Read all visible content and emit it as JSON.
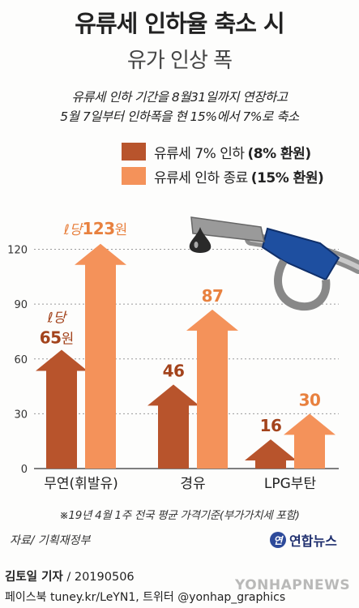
{
  "header": {
    "title": "유류세 인하율 축소 시",
    "subtitle": "유가 인상 폭",
    "note_line1": "유류세 인하 기간을 8월31일까지 연장하고",
    "note_line2": "5월 7일부터 인하폭을 현 15%에서 7%로 축소"
  },
  "legend": [
    {
      "prefix": "유류세 7% 인하",
      "highlight": "(8% 환원)"
    },
    {
      "prefix": "유류세 인하 종료",
      "highlight": "(15% 환원)"
    }
  ],
  "colors": {
    "series1": "#b8542c",
    "series2": "#f4925a",
    "label1": "#a3431c",
    "label2": "#e8813f",
    "nozzle": "#1e4fa0"
  },
  "chart_data": {
    "type": "bar",
    "categories": [
      "무연(휘발유)",
      "경유",
      "LPG부탄"
    ],
    "series": [
      {
        "name": "유류세 7% 인하(8% 환원)",
        "values": [
          65,
          46,
          16
        ]
      },
      {
        "name": "유류세 인하 종료(15% 환원)",
        "values": [
          123,
          87,
          30
        ]
      }
    ],
    "ylim": [
      0,
      130
    ],
    "yticks": [
      "0",
      "30",
      "60",
      "90",
      "120"
    ],
    "grid": true,
    "value_labels": {
      "series1": [
        "65",
        "46",
        "16"
      ],
      "series2": [
        "123",
        "87",
        "30"
      ]
    },
    "unit_prefix": "ℓ당",
    "unit_suffix": "원"
  },
  "footnote": "※19년 4월 1주 전국 평균 가격기준(부가가치세 포함)",
  "source": "자료/ 기획재정부",
  "brand": {
    "name": "연합뉴스",
    "mark": "연"
  },
  "credit": {
    "reporter": "김토일 기자",
    "date": "/ 20190506"
  },
  "social": "페이스북 tuney.kr/LeYN1, 트위터 @yonhap_graphics",
  "watermark": "YONHAPNEWS",
  "icons": {
    "nozzle": "fuel-nozzle-icon",
    "drop": "oil-drop-icon"
  }
}
